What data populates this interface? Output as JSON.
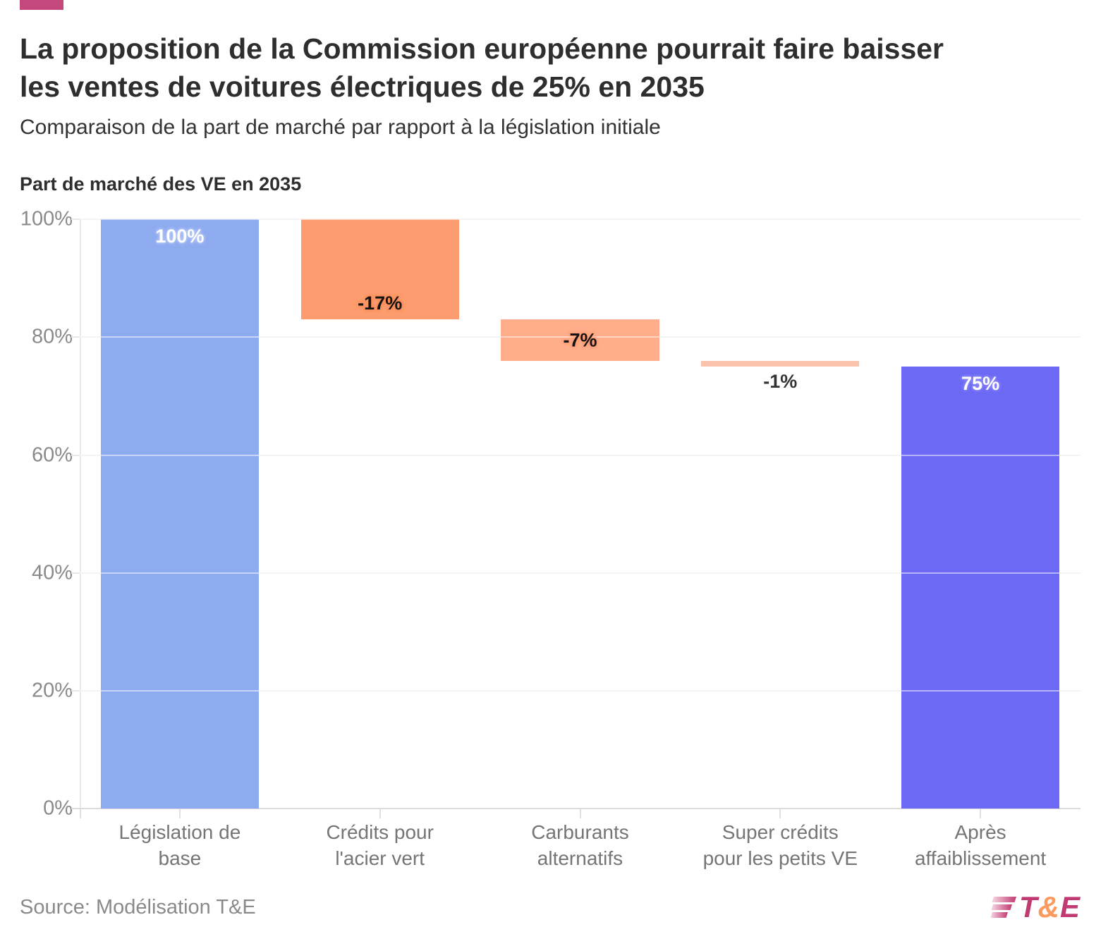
{
  "meta": {
    "accent_color": "#c4487c"
  },
  "header": {
    "title": "La proposition de la Commission européenne pourrait faire baisser les ventes de voitures électriques de 25% en 2035",
    "title_lines": [
      "La proposition de la Commission européenne pourrait faire baisser",
      "les ventes de voitures électriques de 25% en 2035"
    ],
    "subtitle": "Comparaison de la part de marché par rapport à la législation initiale"
  },
  "chart_data": {
    "type": "bar",
    "subtype": "waterfall",
    "title": "Part de marché des VE en 2035",
    "xlabel": "",
    "ylabel": "Part de marché des VE en 2035",
    "ylim": [
      0,
      100
    ],
    "grid": true,
    "legend": false,
    "y_ticks": [
      0,
      20,
      40,
      60,
      80,
      100
    ],
    "y_tick_labels": [
      "0%",
      "20%",
      "40%",
      "60%",
      "80%",
      "100%"
    ],
    "categories": [
      "Législation de base",
      "Crédits pour l'acier vert",
      "Carburants alternatifs",
      "Super crédits pour les petits VE",
      "Après affaiblissement"
    ],
    "category_lines": [
      [
        "Législation de",
        "base"
      ],
      [
        "Crédits pour",
        "l'acier vert"
      ],
      [
        "Carburants",
        "alternatifs"
      ],
      [
        "Super crédits",
        "pour les petits VE"
      ],
      [
        "Après",
        "affaiblissement"
      ]
    ],
    "bars": [
      {
        "category": "Législation de base",
        "delta": 100,
        "start": 0,
        "end": 100,
        "value_label": "100%",
        "color": "#8fabf0",
        "value_label_color": "#ffffff",
        "value_label_halo": "#b3c5f6",
        "value_label_position": "inside-top"
      },
      {
        "category": "Crédits pour l'acier vert",
        "delta": -17,
        "start": 100,
        "end": 83,
        "value_label": "-17%",
        "color": "#fc9c6f",
        "value_label_color": "#141414",
        "value_label_halo": "#fb8c55",
        "value_label_position": "inside-bottom"
      },
      {
        "category": "Carburants alternatifs",
        "delta": -7,
        "start": 83,
        "end": 76,
        "value_label": "-7%",
        "color": "#ffad8b",
        "value_label_color": "#141414",
        "value_label_halo": "#ff9d74",
        "value_label_position": "center"
      },
      {
        "category": "Super crédits pour les petits VE",
        "delta": -1,
        "start": 76,
        "end": 75,
        "value_label": "-1%",
        "color": "#fbc3ab",
        "value_label_color": "#333333",
        "value_label_halo": "",
        "value_label_position": "below"
      },
      {
        "category": "Après affaiblissement",
        "delta": 75,
        "start": 0,
        "end": 75,
        "value_label": "75%",
        "color": "#6c69f5",
        "value_label_color": "#ffffff",
        "value_label_halo": "#8b87f8",
        "value_label_position": "inside-top"
      }
    ]
  },
  "footer": {
    "source": "Source: Modélisation T&E",
    "logo": {
      "t": "T",
      "amp": "&",
      "e": "E",
      "t_color": "#c23a72",
      "amp_color": "#fb9a5e",
      "e_color": "#c23a72",
      "mark_gradient_start": "#f6d7e3",
      "mark_gradient_end": "#c23a72"
    }
  }
}
